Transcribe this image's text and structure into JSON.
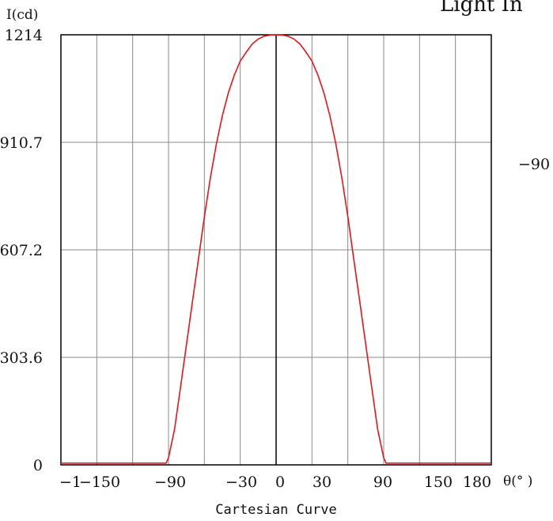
{
  "chart_data": {
    "type": "line",
    "title": "Light In",
    "caption": "Cartesian Curve",
    "xlabel": "θ(° )",
    "ylabel": "I(cd)",
    "xlim": [
      -180,
      180
    ],
    "ylim": [
      0,
      1214
    ],
    "grid": true,
    "y_ticks": [
      "0",
      "303.6",
      "607.2",
      "910.7",
      "1214"
    ],
    "x_tick_labels": [
      "−1",
      "−150",
      "−90",
      "−30",
      "0",
      "30",
      "90",
      "150",
      "180"
    ],
    "polar_fragment_label": "−90",
    "series": [
      {
        "color": "#e8141a",
        "x": [
          -180,
          -150,
          -120,
          -92,
          -90,
          -85,
          -80,
          -75,
          -70,
          -65,
          -60,
          -55,
          -50,
          -45,
          -40,
          -35,
          -30,
          -25,
          -20,
          -15,
          -10,
          -5,
          0,
          5,
          10,
          15,
          20,
          25,
          30,
          35,
          40,
          45,
          50,
          55,
          60,
          65,
          70,
          75,
          80,
          85,
          90,
          92,
          120,
          150,
          180
        ],
        "y": [
          5,
          5,
          5,
          5,
          20,
          100,
          218,
          340,
          460,
          580,
          700,
          810,
          905,
          985,
          1050,
          1100,
          1140,
          1165,
          1188,
          1202,
          1210,
          1213,
          1214,
          1213,
          1210,
          1202,
          1188,
          1165,
          1140,
          1100,
          1050,
          985,
          905,
          810,
          700,
          580,
          460,
          340,
          218,
          100,
          20,
          5,
          5,
          5,
          5
        ]
      }
    ]
  }
}
